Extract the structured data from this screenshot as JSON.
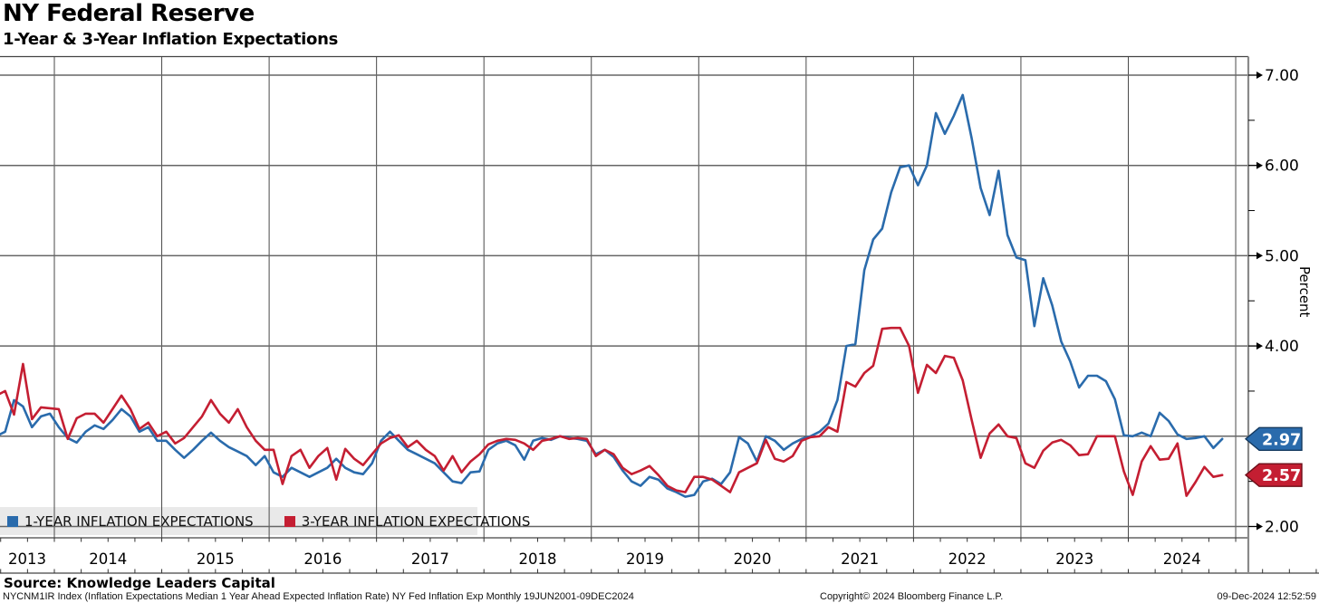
{
  "header": {
    "title": "NY Federal Reserve",
    "subtitle": "1-Year & 3-Year Inflation Expectations"
  },
  "chart_data": {
    "type": "line",
    "title": "NY Federal Reserve 1-Year & 3-Year Inflation Expectations",
    "frequency": "monthly",
    "start_month": "2013-06",
    "end_month": "2024-11",
    "x_axis": {
      "year_labels": [
        "2013",
        "2014",
        "2015",
        "2016",
        "2017",
        "2018",
        "2019",
        "2020",
        "2021",
        "2022",
        "2023",
        "2024"
      ],
      "minor_ticks": "quarterly",
      "grid": "on"
    },
    "y_axis": {
      "title": "Percent",
      "side": "right",
      "tick_labels": [
        "7.00",
        "6.00",
        "5.00",
        "4.00",
        "3.00",
        "2.00"
      ],
      "major_tick_values": [
        7.0,
        6.0,
        5.0,
        4.0,
        3.0,
        2.0
      ],
      "minor_tick_values": [
        6.5,
        5.5,
        4.5,
        3.5,
        2.5
      ],
      "range_approx": [
        1.8,
        7.2
      ],
      "grid": "on"
    },
    "series": [
      {
        "name": "1-YEAR INFLATION EXPECTATIONS",
        "color": "#2a6bac",
        "badge_color": "#2a6bac",
        "badge_border": "#14395f",
        "last_value_badge": "2.97",
        "values": [
          3.0,
          3.05,
          3.4,
          3.33,
          3.1,
          3.22,
          3.25,
          3.1,
          2.98,
          2.93,
          3.05,
          3.12,
          3.08,
          3.18,
          3.3,
          3.22,
          3.05,
          3.1,
          2.95,
          2.95,
          2.85,
          2.76,
          2.85,
          2.95,
          3.04,
          2.95,
          2.88,
          2.83,
          2.78,
          2.68,
          2.78,
          2.6,
          2.55,
          2.65,
          2.6,
          2.55,
          2.6,
          2.65,
          2.75,
          2.65,
          2.6,
          2.58,
          2.7,
          2.95,
          3.05,
          2.95,
          2.85,
          2.8,
          2.75,
          2.7,
          2.6,
          2.5,
          2.48,
          2.6,
          2.61,
          2.85,
          2.92,
          2.95,
          2.9,
          2.74,
          2.95,
          2.98,
          2.96,
          3.0,
          2.98,
          2.97,
          2.95,
          2.8,
          2.85,
          2.77,
          2.62,
          2.5,
          2.45,
          2.55,
          2.52,
          2.42,
          2.38,
          2.33,
          2.35,
          2.5,
          2.53,
          2.47,
          2.6,
          2.99,
          2.92,
          2.72,
          3.0,
          2.95,
          2.85,
          2.92,
          2.97,
          3.0,
          3.05,
          3.14,
          3.4,
          4.0,
          4.02,
          4.84,
          5.18,
          5.3,
          5.7,
          5.98,
          6.0,
          5.78,
          6.0,
          6.58,
          6.35,
          6.55,
          6.78,
          6.3,
          5.75,
          5.45,
          5.94,
          5.23,
          4.98,
          4.95,
          4.22,
          4.75,
          4.45,
          4.05,
          3.83,
          3.54,
          3.67,
          3.67,
          3.61,
          3.41,
          3.01,
          3.0,
          3.04,
          3.0,
          3.26,
          3.17,
          3.02,
          2.97,
          2.98,
          3.0,
          2.87,
          2.97
        ]
      },
      {
        "name": "3-YEAR INFLATION EXPECTATIONS",
        "color": "#c41e32",
        "badge_color": "#c41e32",
        "badge_border": "#6e0e18",
        "last_value_badge": "2.57",
        "values": [
          3.45,
          3.5,
          3.24,
          3.8,
          3.19,
          3.32,
          3.31,
          3.3,
          2.97,
          3.2,
          3.25,
          3.25,
          3.15,
          3.3,
          3.45,
          3.3,
          3.08,
          3.15,
          3.0,
          3.05,
          2.92,
          2.98,
          3.1,
          3.22,
          3.4,
          3.25,
          3.15,
          3.3,
          3.1,
          2.95,
          2.85,
          2.85,
          2.47,
          2.78,
          2.85,
          2.65,
          2.78,
          2.87,
          2.52,
          2.86,
          2.75,
          2.68,
          2.8,
          2.92,
          2.98,
          3.01,
          2.88,
          2.95,
          2.85,
          2.78,
          2.62,
          2.78,
          2.6,
          2.72,
          2.8,
          2.91,
          2.95,
          2.97,
          2.96,
          2.92,
          2.85,
          2.95,
          2.97,
          3.0,
          2.97,
          2.98,
          2.97,
          2.78,
          2.85,
          2.8,
          2.65,
          2.58,
          2.62,
          2.67,
          2.57,
          2.45,
          2.4,
          2.38,
          2.55,
          2.55,
          2.52,
          2.45,
          2.38,
          2.6,
          2.65,
          2.7,
          2.96,
          2.75,
          2.72,
          2.78,
          2.95,
          2.99,
          3.0,
          3.1,
          3.05,
          3.6,
          3.55,
          3.7,
          3.78,
          4.19,
          4.2,
          4.2,
          4.0,
          3.48,
          3.79,
          3.7,
          3.89,
          3.87,
          3.62,
          3.18,
          2.76,
          3.03,
          3.13,
          3.0,
          2.98,
          2.7,
          2.65,
          2.84,
          2.93,
          2.96,
          2.9,
          2.79,
          2.8,
          3.0,
          3.0,
          3.0,
          2.61,
          2.35,
          2.72,
          2.89,
          2.74,
          2.75,
          2.92,
          2.34,
          2.49,
          2.66,
          2.55,
          2.57
        ]
      }
    ],
    "legend_position": "bottom-left"
  },
  "legend": {
    "items": [
      {
        "label": "1-YEAR INFLATION EXPECTATIONS",
        "color": "#2a6bac"
      },
      {
        "label": "3-YEAR INFLATION EXPECTATIONS",
        "color": "#c41e32"
      }
    ]
  },
  "y_axis_title": "Percent",
  "footer": {
    "source": "Source: Knowledge Leaders Capital",
    "description": "NYCNM1IR Index (Inflation Expectations Median 1 Year Ahead Expected Inflation Rate) NY Fed Inflation Exp  Monthly 19JUN2001-09DEC2024",
    "copyright": "Copyright© 2024 Bloomberg Finance L.P.",
    "timestamp": "09-Dec-2024 12:52:59"
  },
  "colors": {
    "grid": "#666666",
    "frame": "#444444",
    "axis": "#8a8a8a",
    "legend_bg": "#e9e9e9"
  }
}
